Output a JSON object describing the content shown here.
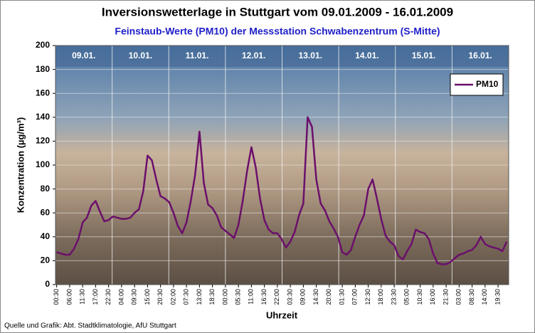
{
  "chart_data": {
    "type": "line",
    "title": "Inversionswetterlage in Stuttgart vom 09.01.2009 - 16.01.2009",
    "subtitle": "Feinstaub-Werte (PM10) der Messstation Schwabenzentrum (S-Mitte)",
    "y_label": "Konzentration (µg/m³)",
    "x_label": "Uhrzeit",
    "source": "Quelle und Grafik: Abt. Stadtklimatologie, AfU Stuttgart",
    "day_labels": [
      "09.01.",
      "10.01.",
      "11.01.",
      "12.01.",
      "13.01.",
      "14.01.",
      "15.01.",
      "16.01."
    ],
    "categories": [
      "00:30",
      null,
      null,
      "06:00",
      null,
      null,
      "11:30",
      null,
      null,
      "17:00",
      null,
      null,
      "22:30",
      null,
      null,
      "04:00",
      null,
      null,
      "09:30",
      null,
      null,
      "15:00",
      null,
      null,
      "20:30",
      null,
      null,
      "02:00",
      null,
      null,
      "07:30",
      null,
      null,
      "13:00",
      null,
      null,
      "18:30",
      null,
      null,
      "00:00",
      null,
      null,
      "05:30",
      null,
      null,
      "11:00",
      null,
      null,
      "16:30",
      null,
      null,
      "22:00",
      null,
      null,
      "03:30",
      null,
      null,
      "09:00",
      null,
      null,
      "14:30",
      null,
      null,
      "20:00",
      null,
      null,
      "01:30",
      null,
      null,
      "07:00",
      null,
      null,
      "12:30",
      null,
      null,
      "18:00",
      null,
      null,
      "23:30",
      null,
      null,
      "05:00",
      null,
      null,
      "10:30",
      null,
      null,
      "16:00",
      null,
      null,
      "21:30",
      null,
      null,
      "03:00",
      null,
      null,
      "08:30",
      null,
      null,
      "14:00",
      null,
      null,
      "19:30",
      null,
      null
    ],
    "series": [
      {
        "name": "PM10",
        "color": "#6b0f6b",
        "values": [
          27,
          26,
          25,
          25,
          30,
          38,
          52,
          56,
          66,
          70,
          61,
          53,
          54,
          57,
          56,
          55,
          55,
          56,
          60,
          63,
          78,
          108,
          104,
          88,
          74,
          72,
          69,
          60,
          49,
          43,
          52,
          70,
          92,
          128,
          85,
          67,
          64,
          58,
          48,
          45,
          42,
          39,
          50,
          70,
          95,
          115,
          98,
          72,
          54,
          46,
          43,
          43,
          38,
          31,
          36,
          44,
          58,
          68,
          140,
          132,
          88,
          68,
          62,
          53,
          47,
          40,
          27,
          25,
          29,
          40,
          50,
          58,
          80,
          88,
          72,
          55,
          41,
          36,
          33,
          24,
          21,
          28,
          34,
          46,
          44,
          43,
          38,
          26,
          18,
          17,
          17,
          19,
          22,
          25,
          26,
          28,
          29,
          33,
          40,
          34,
          32,
          31,
          30,
          28,
          36
        ]
      }
    ],
    "ylim": [
      0,
      200
    ],
    "yticks": [
      0,
      20,
      40,
      60,
      80,
      100,
      120,
      140,
      160,
      180,
      200
    ],
    "grid": true,
    "legend": "upper right"
  }
}
